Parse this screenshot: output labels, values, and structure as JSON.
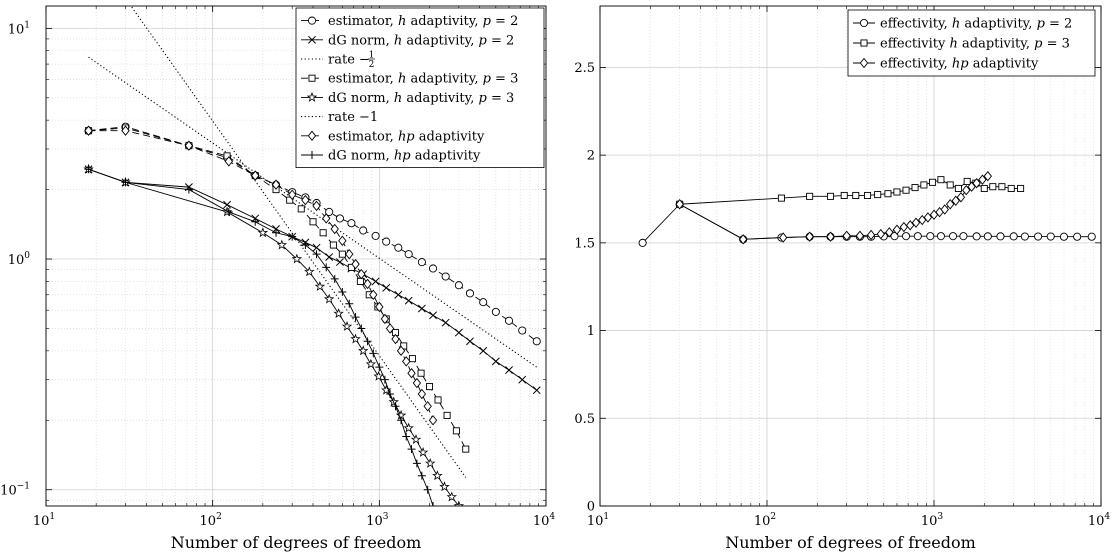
{
  "chart_data": [
    {
      "type": "line",
      "xlabel": "Number of degrees of freedom",
      "ylabel": "",
      "xscale": "log",
      "yscale": "log",
      "xlim": [
        10,
        10000
      ],
      "ylim": [
        0.085,
        12.5
      ],
      "xticks": [
        {
          "base": "10",
          "exp": "1"
        },
        {
          "base": "10",
          "exp": "2"
        },
        {
          "base": "10",
          "exp": "3"
        },
        {
          "base": "10",
          "exp": "4"
        }
      ],
      "yticks": [
        {
          "value": 0.1,
          "base": "10",
          "exp": "−1"
        },
        {
          "value": 1,
          "base": "10",
          "exp": "0"
        },
        {
          "value": 10,
          "base": "10",
          "exp": "1"
        }
      ],
      "grid": true,
      "legend_position": "top-right",
      "series": [
        {
          "legend": [
            "estimator, ",
            "h",
            " adaptivity, ",
            "p",
            " = 2"
          ],
          "marker": "circle",
          "dash": "dashed",
          "x": [
            18,
            30,
            72,
            122,
            180,
            240,
            300,
            360,
            420,
            500,
            580,
            680,
            800,
            950,
            1100,
            1300,
            1500,
            1800,
            2100,
            2500,
            3000,
            3500,
            4200,
            5000,
            6000,
            7200,
            8800
          ],
          "y": [
            3.6,
            3.75,
            3.1,
            2.75,
            2.3,
            2.1,
            1.95,
            1.85,
            1.75,
            1.6,
            1.5,
            1.43,
            1.33,
            1.26,
            1.19,
            1.12,
            1.05,
            0.97,
            0.91,
            0.84,
            0.77,
            0.71,
            0.65,
            0.59,
            0.54,
            0.49,
            0.44
          ]
        },
        {
          "legend": [
            "dG norm, ",
            "h",
            " adaptivity, ",
            "p",
            " = 2"
          ],
          "marker": "x",
          "dash": "solid",
          "x": [
            18,
            30,
            72,
            122,
            180,
            240,
            300,
            360,
            420,
            500,
            580,
            680,
            800,
            950,
            1100,
            1300,
            1500,
            1800,
            2100,
            2500,
            3000,
            3500,
            4200,
            5000,
            6000,
            7200,
            8800
          ],
          "y": [
            2.45,
            2.15,
            2.05,
            1.72,
            1.5,
            1.35,
            1.25,
            1.18,
            1.12,
            1.02,
            0.97,
            0.91,
            0.86,
            0.8,
            0.75,
            0.7,
            0.66,
            0.61,
            0.57,
            0.53,
            0.48,
            0.44,
            0.4,
            0.36,
            0.33,
            0.3,
            0.27
          ]
        },
        {
          "legend": [
            "rate −",
            "1",
            "2"
          ],
          "marker": "none",
          "dash": "dotted",
          "x": [
            18,
            9000
          ],
          "y": [
            7.5,
            0.336
          ]
        },
        {
          "legend": [
            "estimator, ",
            "h",
            " adaptivity, ",
            "p",
            " = 3"
          ],
          "marker": "square",
          "dash": "dashed",
          "x": [
            18,
            30,
            72,
            122,
            180,
            240,
            290,
            340,
            400,
            460,
            530,
            600,
            680,
            770,
            870,
            980,
            1100,
            1250,
            1400,
            1580,
            1780,
            2000,
            2250,
            2550,
            2900,
            3300
          ],
          "y": [
            3.6,
            3.7,
            3.1,
            2.8,
            2.3,
            2.0,
            1.8,
            1.65,
            1.45,
            1.3,
            1.15,
            1.05,
            0.92,
            0.8,
            0.7,
            0.62,
            0.55,
            0.48,
            0.42,
            0.37,
            0.32,
            0.28,
            0.245,
            0.21,
            0.18,
            0.15
          ]
        },
        {
          "legend": [
            "dG norm, ",
            "h",
            " adaptivity, ",
            "p",
            " = 3"
          ],
          "marker": "star",
          "dash": "solid",
          "x": [
            18,
            30,
            122,
            200,
            260,
            320,
            380,
            440,
            500,
            570,
            640,
            720,
            800,
            890,
            990,
            1100,
            1220,
            1350,
            1500,
            1660,
            1830,
            2020,
            2230,
            2460,
            2720,
            3000,
            3300
          ],
          "y": [
            2.45,
            2.15,
            1.6,
            1.3,
            1.15,
            1.0,
            0.88,
            0.76,
            0.67,
            0.58,
            0.51,
            0.45,
            0.4,
            0.35,
            0.31,
            0.27,
            0.24,
            0.21,
            0.185,
            0.165,
            0.145,
            0.13,
            0.115,
            0.103,
            0.093,
            0.085,
            0.08
          ]
        },
        {
          "legend": [
            "rate −1"
          ],
          "marker": "none",
          "dash": "dotted",
          "x": [
            30,
            3300
          ],
          "y": [
            13.5,
            0.113
          ]
        },
        {
          "legend": [
            "estimator, ",
            "hp",
            " adaptivity"
          ],
          "marker": "diamond",
          "dash": "dashed",
          "x": [
            18,
            30,
            72,
            125,
            180,
            240,
            300,
            360,
            420,
            480,
            540,
            600,
            660,
            720,
            780,
            850,
            920,
            1000,
            1080,
            1160,
            1250,
            1350,
            1450,
            1560,
            1680,
            1800,
            1950,
            2100
          ],
          "y": [
            3.6,
            3.6,
            3.1,
            2.65,
            2.3,
            2.1,
            1.9,
            1.8,
            1.7,
            1.5,
            1.35,
            1.2,
            1.05,
            0.95,
            0.86,
            0.78,
            0.7,
            0.62,
            0.55,
            0.5,
            0.45,
            0.4,
            0.36,
            0.32,
            0.29,
            0.26,
            0.23,
            0.2
          ]
        },
        {
          "legend": [
            "dG norm, ",
            "hp",
            " adaptivity"
          ],
          "marker": "plus",
          "dash": "solid",
          "x": [
            18,
            30,
            72,
            125,
            180,
            240,
            300,
            360,
            420,
            480,
            540,
            600,
            660,
            720,
            780,
            850,
            920,
            1000,
            1080,
            1160,
            1250,
            1350,
            1450,
            1560,
            1680,
            1800,
            1950,
            2100
          ],
          "y": [
            2.45,
            2.15,
            2.0,
            1.6,
            1.45,
            1.3,
            1.25,
            1.15,
            1.05,
            0.92,
            0.82,
            0.72,
            0.64,
            0.56,
            0.5,
            0.44,
            0.39,
            0.34,
            0.3,
            0.26,
            0.23,
            0.2,
            0.17,
            0.15,
            0.13,
            0.115,
            0.1,
            0.085
          ]
        }
      ]
    },
    {
      "type": "line",
      "xlabel": "Number of degrees of freedom",
      "ylabel": "",
      "xscale": "log",
      "yscale": "linear",
      "xlim": [
        10,
        10000
      ],
      "ylim": [
        0,
        2.85
      ],
      "xticks": [
        {
          "base": "10",
          "exp": "1"
        },
        {
          "base": "10",
          "exp": "2"
        },
        {
          "base": "10",
          "exp": "3"
        },
        {
          "base": "10",
          "exp": "4"
        }
      ],
      "yticks": [
        {
          "value": 0,
          "label": "0"
        },
        {
          "value": 0.5,
          "label": "0.5"
        },
        {
          "value": 1,
          "label": "1"
        },
        {
          "value": 1.5,
          "label": "1.5"
        },
        {
          "value": 2,
          "label": "2"
        },
        {
          "value": 2.5,
          "label": "2.5"
        }
      ],
      "grid": true,
      "legend_position": "top-right",
      "series": [
        {
          "legend": [
            "effectivity, ",
            "h",
            " adaptivity, ",
            "p",
            " = 2"
          ],
          "marker": "circle",
          "dash": "solid",
          "x": [
            18,
            30,
            72,
            122,
            180,
            240,
            300,
            360,
            420,
            500,
            580,
            680,
            800,
            950,
            1100,
            1300,
            1500,
            1800,
            2100,
            2500,
            3000,
            3500,
            4200,
            5000,
            6000,
            7200,
            8800
          ],
          "y": [
            1.5,
            1.72,
            1.52,
            1.53,
            1.535,
            1.535,
            1.535,
            1.535,
            1.535,
            1.537,
            1.538,
            1.538,
            1.538,
            1.538,
            1.538,
            1.538,
            1.538,
            1.537,
            1.537,
            1.537,
            1.537,
            1.536,
            1.536,
            1.536,
            1.535,
            1.535,
            1.535
          ]
        },
        {
          "legend": [
            "effectivity ",
            "h",
            " adaptivity, ",
            "p",
            " = 3"
          ],
          "marker": "square",
          "dash": "solid",
          "x": [
            30,
            122,
            180,
            240,
            290,
            340,
            400,
            460,
            530,
            600,
            680,
            770,
            870,
            980,
            1100,
            1250,
            1400,
            1580,
            1780,
            2000,
            2250,
            2550,
            2900,
            3300
          ],
          "y": [
            1.72,
            1.755,
            1.765,
            1.765,
            1.77,
            1.77,
            1.77,
            1.775,
            1.78,
            1.79,
            1.8,
            1.815,
            1.83,
            1.845,
            1.86,
            1.83,
            1.81,
            1.85,
            1.84,
            1.81,
            1.82,
            1.82,
            1.81,
            1.81
          ]
        },
        {
          "legend": [
            "effectivity, ",
            "hp",
            " adaptivity"
          ],
          "marker": "diamond",
          "dash": "solid",
          "x": [
            30,
            72,
            125,
            180,
            240,
            300,
            360,
            420,
            480,
            540,
            600,
            660,
            720,
            780,
            850,
            920,
            1000,
            1080,
            1160,
            1250,
            1350,
            1450,
            1560,
            1680,
            1800,
            1950,
            2100
          ],
          "y": [
            1.72,
            1.52,
            1.53,
            1.535,
            1.535,
            1.54,
            1.54,
            1.545,
            1.55,
            1.56,
            1.575,
            1.59,
            1.6,
            1.615,
            1.63,
            1.645,
            1.66,
            1.675,
            1.69,
            1.72,
            1.74,
            1.76,
            1.8,
            1.82,
            1.84,
            1.86,
            1.88
          ]
        }
      ]
    }
  ]
}
